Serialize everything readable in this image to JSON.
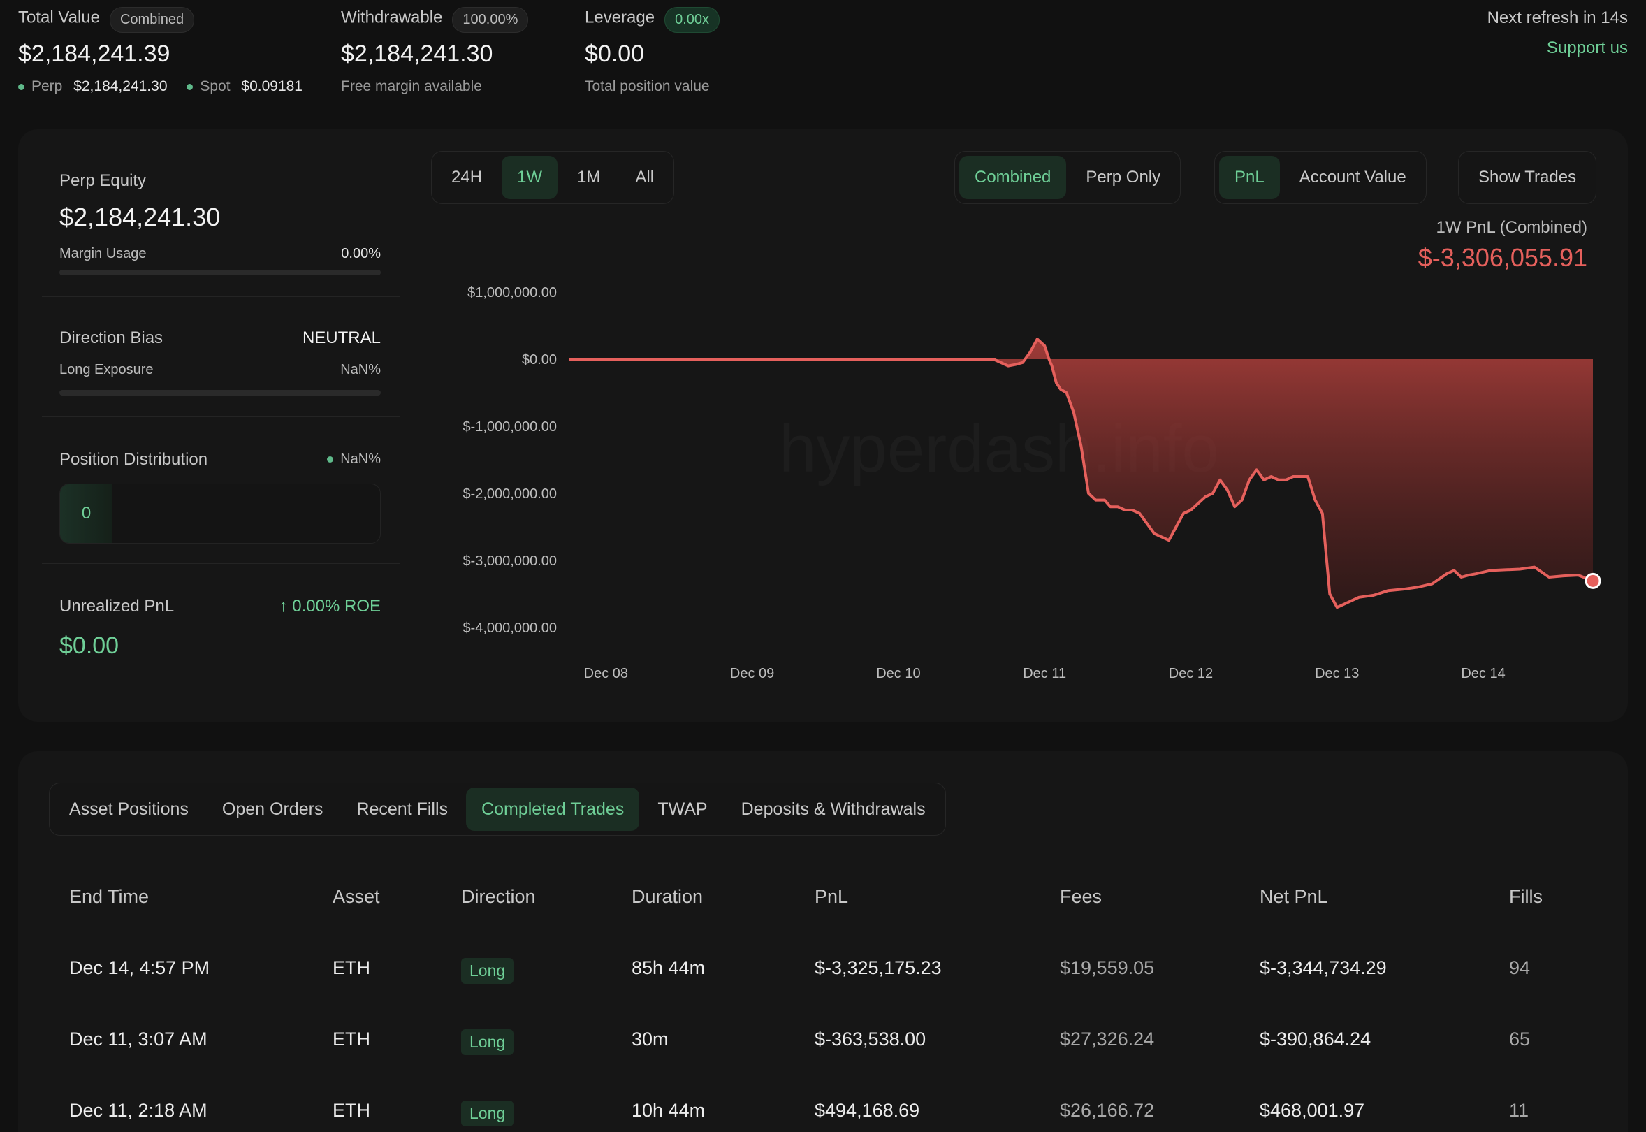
{
  "header": {
    "total_value": {
      "label": "Total Value",
      "pill": "Combined",
      "value": "$2,184,241.39",
      "perp_label": "Perp",
      "perp_value": "$2,184,241.30",
      "spot_label": "Spot",
      "spot_value": "$0.09181"
    },
    "withdrawable": {
      "label": "Withdrawable",
      "pill": "100.00%",
      "value": "$2,184,241.30",
      "sub": "Free margin available"
    },
    "leverage": {
      "label": "Leverage",
      "pill": "0.00x",
      "value": "$0.00",
      "sub": "Total position value"
    },
    "refresh": "Next refresh in 14s",
    "support": "Support us"
  },
  "summary": {
    "perp_equity_label": "Perp Equity",
    "perp_equity_value": "$2,184,241.30",
    "margin_usage_label": "Margin Usage",
    "margin_usage_value": "0.00%",
    "margin_usage_fraction": 0,
    "direction_bias_label": "Direction Bias",
    "direction_bias_value": "NEUTRAL",
    "long_exposure_label": "Long Exposure",
    "long_exposure_value": "NaN%",
    "position_distribution_label": "Position Distribution",
    "position_distribution_value": "NaN%",
    "position_count": "0",
    "unrealized_pnl_label": "Unrealized PnL",
    "roe": "0.00% ROE",
    "unrealized_pnl_value": "$0.00"
  },
  "controls": {
    "ranges": [
      "24H",
      "1W",
      "1M",
      "All"
    ],
    "active_range": "1W",
    "scope": [
      "Combined",
      "Perp Only"
    ],
    "active_scope": "Combined",
    "metric": [
      "PnL",
      "Account Value"
    ],
    "active_metric": "PnL",
    "show_trades": "Show Trades"
  },
  "chart_data": {
    "type": "area",
    "title": "1W PnL (Combined)",
    "headline_value": "$-3,306,055.91",
    "watermark": "hyperdash.info",
    "xlabel": "",
    "ylabel": "",
    "y_ticks": [
      1000000,
      0,
      -1000000,
      -2000000,
      -3000000,
      -4000000
    ],
    "y_tick_labels": [
      "$1,000,000.00",
      "$0.00",
      "$-1,000,000.00",
      "$-2,000,000.00",
      "$-3,000,000.00",
      "$-4,000,000.00"
    ],
    "ylim": [
      -4000000,
      1000000
    ],
    "x_tick_labels": [
      "Dec 08",
      "Dec 09",
      "Dec 10",
      "Dec 11",
      "Dec 12",
      "Dec 13",
      "Dec 14"
    ],
    "x_ticks": [
      0.25,
      1.25,
      2.25,
      3.25,
      4.25,
      5.25,
      6.25
    ],
    "xlim": [
      0,
      7.0
    ],
    "color": "#e5605c",
    "series": [
      {
        "x": [
          0,
          2.9,
          3.0,
          3.05,
          3.1,
          3.15,
          3.2,
          3.25,
          3.28,
          3.3,
          3.33,
          3.36,
          3.4,
          3.45,
          3.5,
          3.55,
          3.6,
          3.63,
          3.66,
          3.7,
          3.75,
          3.8,
          3.85,
          3.9,
          4.0,
          4.1,
          4.15,
          4.2,
          4.25,
          4.3,
          4.35,
          4.4,
          4.45,
          4.5,
          4.55,
          4.6,
          4.65,
          4.7,
          4.75,
          4.8,
          4.85,
          4.9,
          4.95,
          5.0,
          5.05,
          5.1,
          5.15,
          5.2,
          5.25,
          5.3,
          5.35,
          5.4,
          5.5,
          5.6,
          5.7,
          5.8,
          5.9,
          6.0,
          6.05,
          6.1,
          6.15,
          6.2,
          6.3,
          6.4,
          6.5,
          6.6,
          6.7,
          6.8,
          6.9,
          7.0
        ],
        "y": [
          0,
          0,
          -100000,
          -80000,
          -50000,
          100000,
          300000,
          200000,
          0,
          -100000,
          -350000,
          -450000,
          -500000,
          -800000,
          -1300000,
          -2000000,
          -2100000,
          -2100000,
          -2100000,
          -2200000,
          -2200000,
          -2250000,
          -2250000,
          -2300000,
          -2600000,
          -2700000,
          -2500000,
          -2300000,
          -2250000,
          -2150000,
          -2050000,
          -2000000,
          -1800000,
          -1950000,
          -2200000,
          -2100000,
          -1800000,
          -1650000,
          -1800000,
          -1750000,
          -1800000,
          -1800000,
          -1750000,
          -1750000,
          -1750000,
          -2100000,
          -2300000,
          -3500000,
          -3700000,
          -3650000,
          -3600000,
          -3550000,
          -3520000,
          -3450000,
          -3430000,
          -3400000,
          -3350000,
          -3200000,
          -3150000,
          -3250000,
          -3220000,
          -3200000,
          -3150000,
          -3140000,
          -3130000,
          -3100000,
          -3250000,
          -3230000,
          -3220000,
          -3306055.91
        ]
      }
    ]
  },
  "tabs": [
    "Asset Positions",
    "Open Orders",
    "Recent Fills",
    "Completed Trades",
    "TWAP",
    "Deposits & Withdrawals"
  ],
  "active_tab": "Completed Trades",
  "table": {
    "headers": [
      "End Time",
      "Asset",
      "Direction",
      "Duration",
      "PnL",
      "Fees",
      "Net PnL",
      "Fills"
    ],
    "rows": [
      {
        "end_time": "Dec 14, 4:57 PM",
        "asset": "ETH",
        "direction": "Long",
        "duration": "85h 44m",
        "pnl": "$-3,325,175.23",
        "pnl_sign": "neg",
        "fees": "$19,559.05",
        "net_pnl": "$-3,344,734.29",
        "net_sign": "neg",
        "fills": "94"
      },
      {
        "end_time": "Dec 11, 3:07 AM",
        "asset": "ETH",
        "direction": "Long",
        "duration": "30m",
        "pnl": "$-363,538.00",
        "pnl_sign": "neg",
        "fees": "$27,326.24",
        "net_pnl": "$-390,864.24",
        "net_sign": "neg",
        "fills": "65"
      },
      {
        "end_time": "Dec 11, 2:18 AM",
        "asset": "ETH",
        "direction": "Long",
        "duration": "10h 44m",
        "pnl": "$494,168.69",
        "pnl_sign": "pos",
        "fees": "$26,166.72",
        "net_pnl": "$468,001.97",
        "net_sign": "pos",
        "fills": "11"
      }
    ]
  }
}
